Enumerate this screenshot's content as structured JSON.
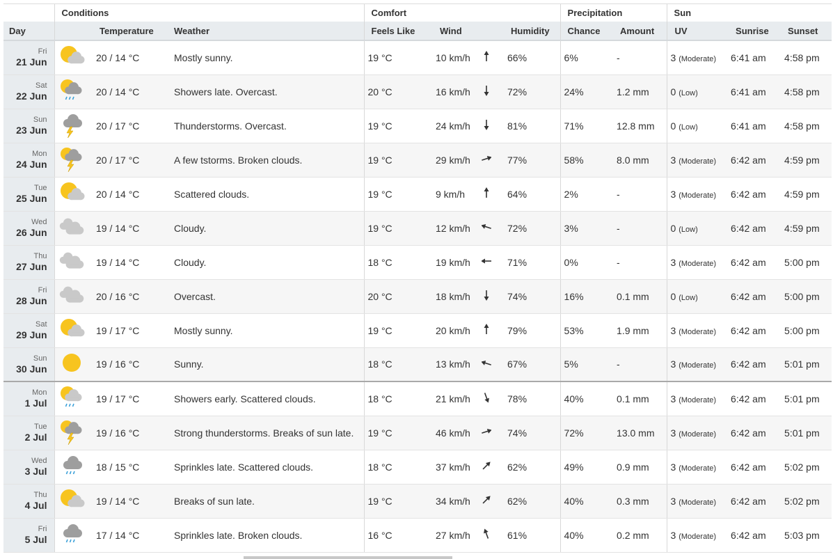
{
  "header": {
    "groups": [
      "Conditions",
      "Comfort",
      "Precipitation",
      "Sun"
    ],
    "columns": [
      "Day",
      "Temperature",
      "Weather",
      "Feels Like",
      "Wind",
      "Humidity",
      "Chance",
      "Amount",
      "UV",
      "Sunrise",
      "Sunset"
    ]
  },
  "rows": [
    {
      "weekday": "Fri",
      "date": "21 Jun",
      "temperature": "20 / 14 °C",
      "weather": "Mostly sunny.",
      "feels_like": "19 °C",
      "wind": "10 km/h",
      "humidity": "66%",
      "chance": "6%",
      "amount": "-",
      "uv": "3",
      "uv_label": "(Moderate)",
      "sunrise": "6:41 am",
      "sunset": "4:58 pm"
    },
    {
      "weekday": "Sat",
      "date": "22 Jun",
      "temperature": "20 / 14 °C",
      "weather": "Showers late. Overcast.",
      "feels_like": "20 °C",
      "wind": "16 km/h",
      "humidity": "72%",
      "chance": "24%",
      "amount": "1.2 mm",
      "uv": "0",
      "uv_label": "(Low)",
      "sunrise": "6:41 am",
      "sunset": "4:58 pm"
    },
    {
      "weekday": "Sun",
      "date": "23 Jun",
      "temperature": "20 / 17 °C",
      "weather": "Thunderstorms. Overcast.",
      "feels_like": "19 °C",
      "wind": "24 km/h",
      "humidity": "81%",
      "chance": "71%",
      "amount": "12.8 mm",
      "uv": "0",
      "uv_label": "(Low)",
      "sunrise": "6:41 am",
      "sunset": "4:58 pm"
    },
    {
      "weekday": "Mon",
      "date": "24 Jun",
      "temperature": "20 / 17 °C",
      "weather": "A few tstorms. Broken clouds.",
      "feels_like": "19 °C",
      "wind": "29 km/h",
      "humidity": "77%",
      "chance": "58%",
      "amount": "8.0 mm",
      "uv": "3",
      "uv_label": "(Moderate)",
      "sunrise": "6:42 am",
      "sunset": "4:59 pm"
    },
    {
      "weekday": "Tue",
      "date": "25 Jun",
      "temperature": "20 / 14 °C",
      "weather": "Scattered clouds.",
      "feels_like": "19 °C",
      "wind": "9 km/h",
      "humidity": "64%",
      "chance": "2%",
      "amount": "-",
      "uv": "3",
      "uv_label": "(Moderate)",
      "sunrise": "6:42 am",
      "sunset": "4:59 pm"
    },
    {
      "weekday": "Wed",
      "date": "26 Jun",
      "temperature": "19 / 14 °C",
      "weather": "Cloudy.",
      "feels_like": "19 °C",
      "wind": "12 km/h",
      "humidity": "72%",
      "chance": "3%",
      "amount": "-",
      "uv": "0",
      "uv_label": "(Low)",
      "sunrise": "6:42 am",
      "sunset": "4:59 pm"
    },
    {
      "weekday": "Thu",
      "date": "27 Jun",
      "temperature": "19 / 14 °C",
      "weather": "Cloudy.",
      "feels_like": "18 °C",
      "wind": "19 km/h",
      "humidity": "71%",
      "chance": "0%",
      "amount": "-",
      "uv": "3",
      "uv_label": "(Moderate)",
      "sunrise": "6:42 am",
      "sunset": "5:00 pm"
    },
    {
      "weekday": "Fri",
      "date": "28 Jun",
      "temperature": "20 / 16 °C",
      "weather": "Overcast.",
      "feels_like": "20 °C",
      "wind": "18 km/h",
      "humidity": "74%",
      "chance": "16%",
      "amount": "0.1 mm",
      "uv": "0",
      "uv_label": "(Low)",
      "sunrise": "6:42 am",
      "sunset": "5:00 pm"
    },
    {
      "weekday": "Sat",
      "date": "29 Jun",
      "temperature": "19 / 17 °C",
      "weather": "Mostly sunny.",
      "feels_like": "19 °C",
      "wind": "20 km/h",
      "humidity": "79%",
      "chance": "53%",
      "amount": "1.9 mm",
      "uv": "3",
      "uv_label": "(Moderate)",
      "sunrise": "6:42 am",
      "sunset": "5:00 pm"
    },
    {
      "weekday": "Sun",
      "date": "30 Jun",
      "temperature": "19 / 16 °C",
      "weather": "Sunny.",
      "feels_like": "18 °C",
      "wind": "13 km/h",
      "humidity": "67%",
      "chance": "5%",
      "amount": "-",
      "uv": "3",
      "uv_label": "(Moderate)",
      "sunrise": "6:42 am",
      "sunset": "5:01 pm"
    },
    {
      "weekday": "Mon",
      "date": "1 Jul",
      "temperature": "19 / 17 °C",
      "weather": "Showers early. Scattered clouds.",
      "feels_like": "18 °C",
      "wind": "21 km/h",
      "humidity": "78%",
      "chance": "40%",
      "amount": "0.1 mm",
      "uv": "3",
      "uv_label": "(Moderate)",
      "sunrise": "6:42 am",
      "sunset": "5:01 pm"
    },
    {
      "weekday": "Tue",
      "date": "2 Jul",
      "temperature": "19 / 16 °C",
      "weather": "Strong thunderstorms. Breaks of sun late.",
      "feels_like": "19 °C",
      "wind": "46 km/h",
      "humidity": "74%",
      "chance": "72%",
      "amount": "13.0 mm",
      "uv": "3",
      "uv_label": "(Moderate)",
      "sunrise": "6:42 am",
      "sunset": "5:01 pm"
    },
    {
      "weekday": "Wed",
      "date": "3 Jul",
      "temperature": "18 / 15 °C",
      "weather": "Sprinkles late. Scattered clouds.",
      "feels_like": "18 °C",
      "wind": "37 km/h",
      "humidity": "62%",
      "chance": "49%",
      "amount": "0.9 mm",
      "uv": "3",
      "uv_label": "(Moderate)",
      "sunrise": "6:42 am",
      "sunset": "5:02 pm"
    },
    {
      "weekday": "Thu",
      "date": "4 Jul",
      "temperature": "19 / 14 °C",
      "weather": "Breaks of sun late.",
      "feels_like": "19 °C",
      "wind": "34 km/h",
      "humidity": "62%",
      "chance": "40%",
      "amount": "0.3 mm",
      "uv": "3",
      "uv_label": "(Moderate)",
      "sunrise": "6:42 am",
      "sunset": "5:02 pm"
    },
    {
      "weekday": "Fri",
      "date": "5 Jul",
      "temperature": "17 / 14 °C",
      "weather": "Sprinkles late. Broken clouds.",
      "feels_like": "16 °C",
      "wind": "27 km/h",
      "humidity": "61%",
      "chance": "40%",
      "amount": "0.2 mm",
      "uv": "3",
      "uv_label": "(Moderate)",
      "sunrise": "6:42 am",
      "sunset": "5:03 pm"
    }
  ]
}
